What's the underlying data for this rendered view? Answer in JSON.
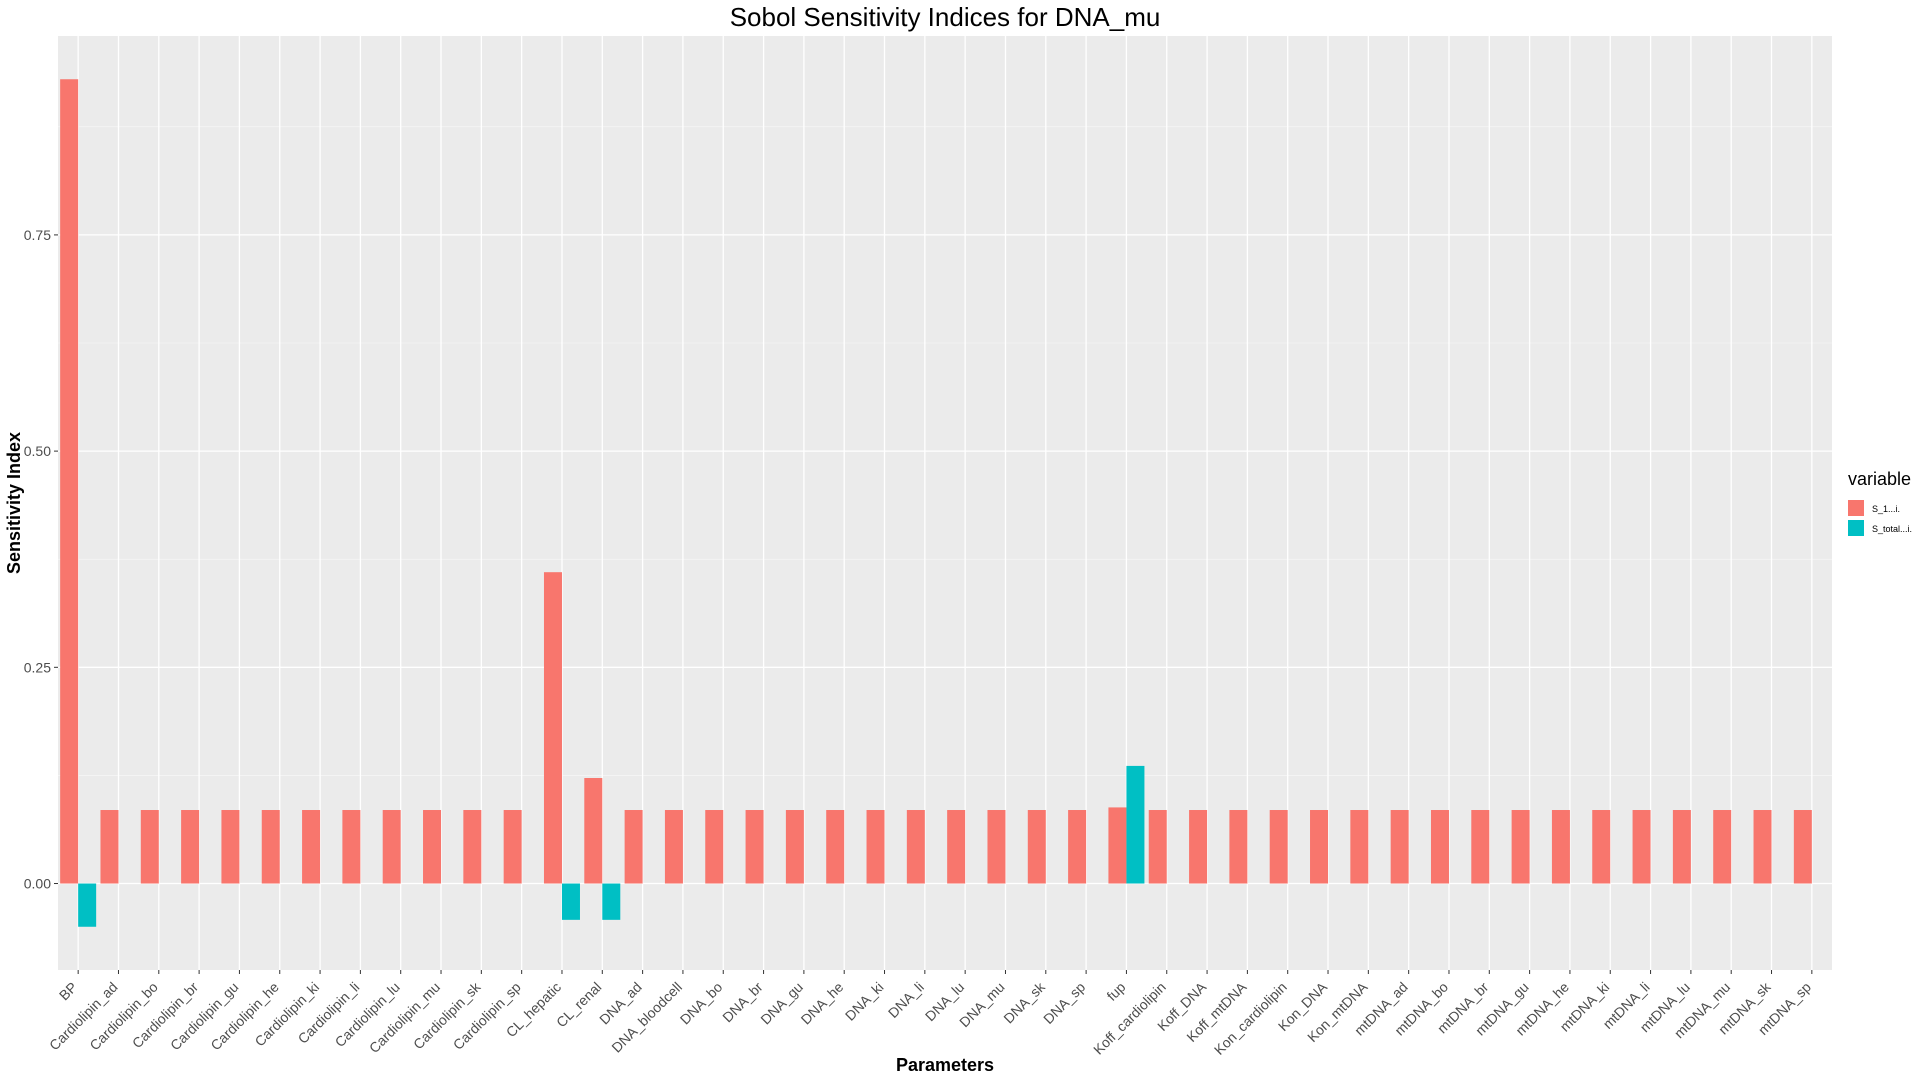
{
  "chart_data": {
    "type": "bar",
    "title": "Sobol Sensitivity Indices for DNA_mu",
    "xlabel": "Parameters",
    "ylabel": "Sensitivity Index",
    "ylim": [
      -0.1,
      0.98
    ],
    "yticks": [
      0.0,
      0.25,
      0.5,
      0.75
    ],
    "ytick_labels": [
      "0.00",
      "0.25",
      "0.50",
      "0.75"
    ],
    "grid": true,
    "legend_position": "right",
    "legend_title": "variable",
    "categories": [
      "BP",
      "Cardiolipin_ad",
      "Cardiolipin_bo",
      "Cardiolipin_br",
      "Cardiolipin_gu",
      "Cardiolipin_he",
      "Cardiolipin_ki",
      "Cardiolipin_li",
      "Cardiolipin_lu",
      "Cardiolipin_mu",
      "Cardiolipin_sk",
      "Cardiolipin_sp",
      "CL_hepatic",
      "CL_renal",
      "DNA_ad",
      "DNA_bloodcell",
      "DNA_bo",
      "DNA_br",
      "DNA_gu",
      "DNA_he",
      "DNA_ki",
      "DNA_li",
      "DNA_lu",
      "DNA_mu",
      "DNA_sk",
      "DNA_sp",
      "fup",
      "Koff_cardiolipin",
      "Koff_DNA",
      "Koff_mtDNA",
      "Kon_cardiolipin",
      "Kon_DNA",
      "Kon_mtDNA",
      "mtDNA_ad",
      "mtDNA_bo",
      "mtDNA_br",
      "mtDNA_gu",
      "mtDNA_he",
      "mtDNA_ki",
      "mtDNA_li",
      "mtDNA_lu",
      "mtDNA_mu",
      "mtDNA_sk",
      "mtDNA_sp"
    ],
    "series": [
      {
        "name": "S_1...i.",
        "color": "#F8766D",
        "values": [
          0.93,
          0.085,
          0.085,
          0.085,
          0.085,
          0.085,
          0.085,
          0.085,
          0.085,
          0.085,
          0.085,
          0.085,
          0.36,
          0.122,
          0.085,
          0.085,
          0.085,
          0.085,
          0.085,
          0.085,
          0.085,
          0.085,
          0.085,
          0.085,
          0.085,
          0.085,
          0.088,
          0.085,
          0.085,
          0.085,
          0.085,
          0.085,
          0.085,
          0.085,
          0.085,
          0.085,
          0.085,
          0.085,
          0.085,
          0.085,
          0.085,
          0.085,
          0.085,
          0.085
        ]
      },
      {
        "name": "S_total...i.",
        "color": "#00BFC4",
        "values": [
          -0.05,
          0,
          0,
          0,
          0,
          0,
          0,
          0,
          0,
          0,
          0,
          0,
          -0.042,
          -0.042,
          0,
          0,
          0,
          0,
          0,
          0,
          0,
          0,
          0,
          0,
          0,
          0,
          0.136,
          0,
          0,
          0,
          0,
          0,
          0,
          0,
          0,
          0,
          0,
          0,
          0,
          0,
          0,
          0,
          0,
          0
        ]
      }
    ]
  },
  "colors": {
    "panel_background": "#EBEBEB",
    "grid_major": "#FFFFFF",
    "tick_text": "#4D4D4D"
  }
}
